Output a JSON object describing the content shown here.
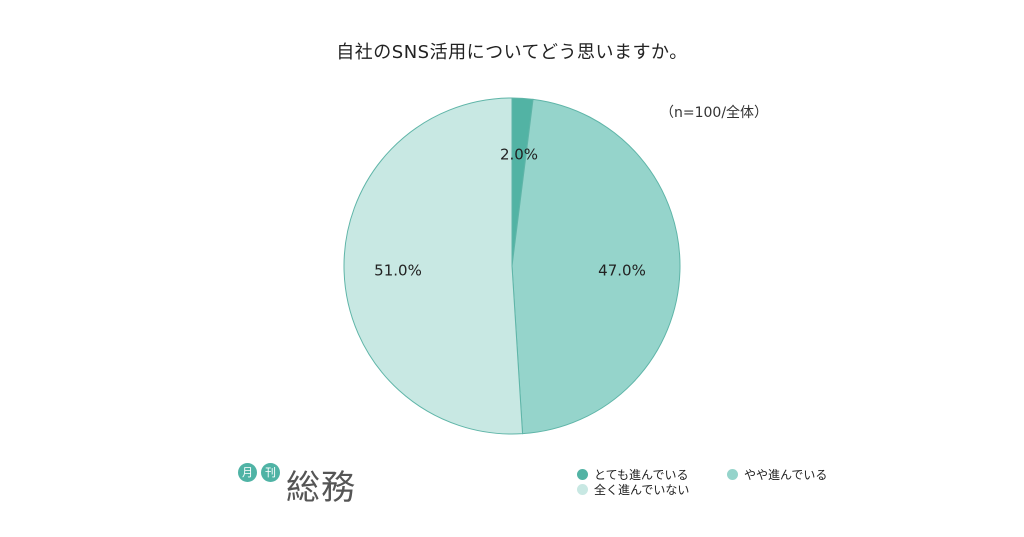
{
  "chart_data": {
    "type": "pie",
    "title": "自社のSNS活用についてどう思いますか。",
    "note": "（n=100/全体）",
    "slices": [
      {
        "label": "とても進んでいる",
        "value": 2.0,
        "display": "2.0%",
        "color": "#52b3a4"
      },
      {
        "label": "やや進んでいる",
        "value": 47.0,
        "display": "47.0%",
        "color": "#95d4cb"
      },
      {
        "label": "全く進んでいない",
        "value": 51.0,
        "display": "51.0%",
        "color": "#c8e8e3"
      }
    ],
    "legend_placement": "bottom-right",
    "stroke_color": "#5fb5a8"
  },
  "logo": {
    "badge1": "月",
    "badge2": "刊",
    "brand": "総務"
  }
}
